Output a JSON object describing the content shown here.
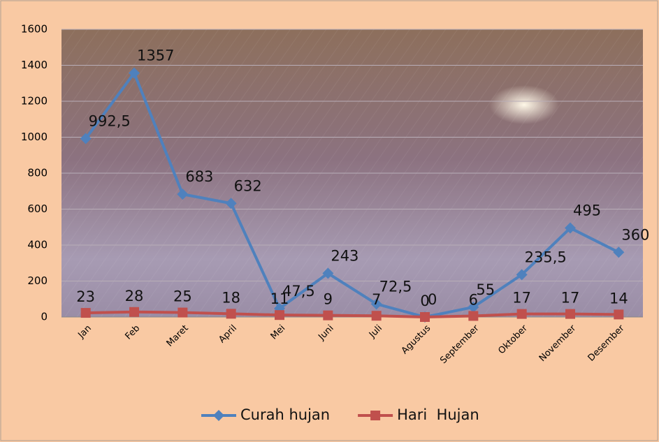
{
  "chart_data": {
    "type": "line",
    "categories": [
      "Jan",
      "Feb",
      "Maret",
      "April",
      "Mei",
      "Juni",
      "Juli",
      "Agustus",
      "September",
      "Oktober",
      "November",
      "Desember"
    ],
    "series": [
      {
        "name": "Curah hujan",
        "color": "#4f81bd",
        "marker": "diamond",
        "values": [
          992.5,
          1357,
          683,
          632,
          47.5,
          243,
          72.5,
          0,
          55,
          235.5,
          495,
          360
        ],
        "value_labels": [
          "992,5",
          "1357",
          "683",
          "632",
          "47,5",
          "243",
          "72,5",
          "0",
          "55",
          "235,5",
          "495",
          "360"
        ]
      },
      {
        "name": "Hari  Hujan",
        "color": "#c0504d",
        "marker": "square",
        "values": [
          23,
          28,
          25,
          18,
          11,
          9,
          7,
          0,
          6,
          17,
          17,
          14
        ]
      }
    ],
    "ylim": [
      0,
      1600
    ],
    "yticks": [
      0,
      200,
      400,
      600,
      800,
      1000,
      1200,
      1400,
      1600
    ],
    "grid": true,
    "legend": "bottom"
  }
}
